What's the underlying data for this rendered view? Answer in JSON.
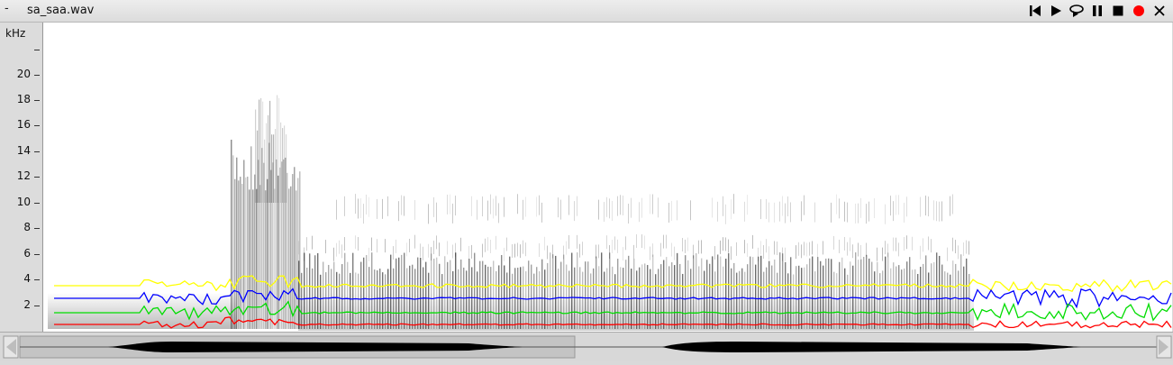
{
  "window": {
    "menu_glyph": "-",
    "title": "sa_saa.wav"
  },
  "toolbar": {
    "buttons": [
      {
        "name": "skip-to-start-button",
        "icon": "skip-to-start-icon"
      },
      {
        "name": "play-button",
        "icon": "play-icon"
      },
      {
        "name": "loop-play-button",
        "icon": "loop-play-icon"
      },
      {
        "name": "pause-button",
        "icon": "pause-icon"
      },
      {
        "name": "stop-button",
        "icon": "stop-icon"
      },
      {
        "name": "record-button",
        "icon": "record-icon"
      },
      {
        "name": "close-button",
        "icon": "close-icon"
      }
    ],
    "record_color": "#ff0000"
  },
  "yaxis": {
    "unit": "kHz",
    "ticks": [
      "",
      "20",
      "18",
      "16",
      "14",
      "12",
      "10",
      "8",
      "6",
      "4",
      "2"
    ]
  },
  "formants": {
    "colors": {
      "f1": "#ff0000",
      "f2": "#00dd00",
      "f3": "#0000ff",
      "f4": "#ffff00"
    }
  }
}
